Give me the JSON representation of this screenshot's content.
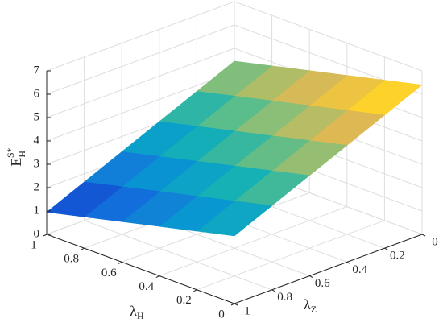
{
  "chart_data": {
    "type": "surface",
    "x_label": {
      "base": "λ",
      "sub": "H"
    },
    "y_label": {
      "base": "λ",
      "sub": "Z"
    },
    "z_label": {
      "base": "E",
      "sub": "H",
      "sup": "S*"
    },
    "x": [
      0,
      0.2,
      0.4,
      0.6,
      0.8,
      1
    ],
    "y": [
      0,
      0.2,
      0.4,
      0.6,
      0.8,
      1
    ],
    "z": [
      [
        6.4,
        5.7,
        5.0,
        4.3,
        3.6,
        2.9
      ],
      [
        6.01,
        5.31,
        4.61,
        3.91,
        3.21,
        2.51
      ],
      [
        5.62,
        4.92,
        4.22,
        3.52,
        2.82,
        2.12
      ],
      [
        5.23,
        4.53,
        3.83,
        3.13,
        2.43,
        1.73
      ],
      [
        4.84,
        4.14,
        3.44,
        2.74,
        2.04,
        1.34
      ],
      [
        4.45,
        3.75,
        3.05,
        2.35,
        1.65,
        0.95
      ]
    ],
    "xlim": [
      0,
      1
    ],
    "ylim": [
      0,
      1
    ],
    "zlim": [
      0,
      7
    ],
    "xticks": [
      0,
      0.2,
      0.4,
      0.6,
      0.8,
      1
    ],
    "yticks": [
      0,
      0.2,
      0.4,
      0.6,
      0.8,
      1
    ],
    "zticks": [
      0,
      1,
      2,
      3,
      4,
      5,
      6,
      7
    ],
    "grid": true,
    "colormap": "parula"
  }
}
